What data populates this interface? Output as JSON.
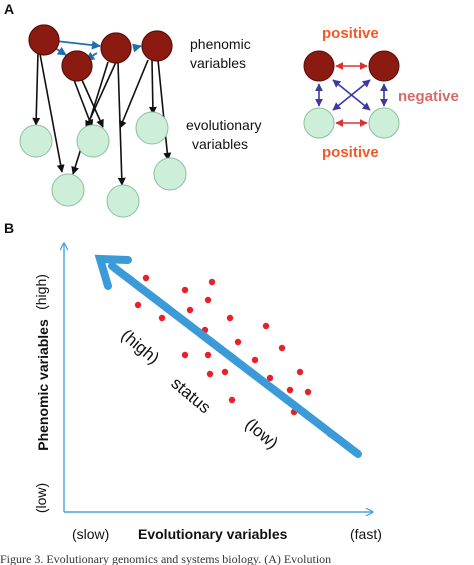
{
  "panel_a": {
    "label": "A",
    "phenomic_label_line1": "phenomic",
    "phenomic_label_line2": "variables",
    "evolutionary_label_line1": "evolutionary",
    "evolutionary_label_line2": "variables",
    "positive_top": "positive",
    "negative": "negative",
    "positive_bottom": "positive",
    "colors": {
      "phenomic_node": "#8b1a10",
      "evolutionary_node": "#cdeed8",
      "positive_arrow": "#e03030",
      "negative_arrow": "#3a3aa0",
      "link_arrow": "#1f6fb0"
    }
  },
  "panel_b": {
    "label": "B",
    "ylabel": "Phenomic variables",
    "xlabel": "Evolutionary variables",
    "y_high": "(high)",
    "y_low": "(low)",
    "x_slow": "(slow)",
    "x_fast": "(fast)",
    "status": "status",
    "status_high": "(high)",
    "status_low": "(low)",
    "colors": {
      "axis": "#4aa3df",
      "status_arrow": "#3b9bd9",
      "points": "#e8202a"
    }
  },
  "caption": "Figure 3. Evolutionary genomics and systems biology. (A) Evolution"
}
